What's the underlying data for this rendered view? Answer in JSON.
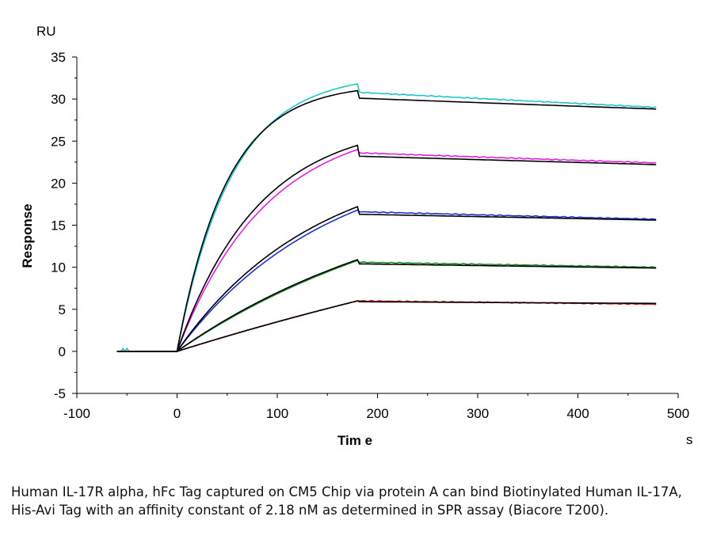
{
  "caption": "Human IL-17R alpha, hFc Tag captured on CM5 Chip via protein A can bind Biotinylated Human IL-17A, His-Avi Tag with an affinity constant of 2.18 nM as determined in SPR assay (Biacore T200).",
  "chart_data": {
    "type": "line",
    "title": "",
    "xlabel": "Tim e",
    "ylabel": "Response",
    "x_unit": "s",
    "y_unit": "RU",
    "xlim": [
      -100,
      500
    ],
    "ylim": [
      -5,
      35
    ],
    "x_ticks": [
      "-100",
      "0",
      "100",
      "200",
      "300",
      "400",
      "500"
    ],
    "y_ticks": [
      "35",
      "30",
      "25",
      "20",
      "15",
      "10",
      "5",
      "0",
      "-5"
    ],
    "grid": false,
    "legend": "none",
    "injection_start": 0,
    "injection_end": 180,
    "time_end": 480,
    "series": [
      {
        "color": "#1fc4c8",
        "assoc_end": 31.8,
        "diss_start": 30.8,
        "diss_end": 29.0
      },
      {
        "color": "#e020e0",
        "assoc_end": 24.0,
        "diss_start": 23.6,
        "diss_end": 22.4
      },
      {
        "color": "#2030d0",
        "assoc_end": 16.8,
        "diss_start": 16.6,
        "diss_end": 15.7
      },
      {
        "color": "#1a8a2a",
        "assoc_end": 10.8,
        "diss_start": 10.6,
        "diss_end": 10.0
      },
      {
        "color": "#d02020",
        "assoc_end": 6.0,
        "diss_start": 6.0,
        "diss_end": 5.6
      }
    ],
    "fits": [
      {
        "color": "#000000",
        "assoc_end": 31.0,
        "diss_start": 30.1,
        "diss_end": 28.8
      },
      {
        "color": "#000000",
        "assoc_end": 24.5,
        "diss_start": 23.2,
        "diss_end": 22.2
      },
      {
        "color": "#000000",
        "assoc_end": 17.2,
        "diss_start": 16.3,
        "diss_end": 15.6
      },
      {
        "color": "#000000",
        "assoc_end": 10.9,
        "diss_start": 10.4,
        "diss_end": 9.9
      },
      {
        "color": "#000000",
        "assoc_end": 6.0,
        "diss_start": 5.9,
        "diss_end": 5.7
      }
    ]
  }
}
